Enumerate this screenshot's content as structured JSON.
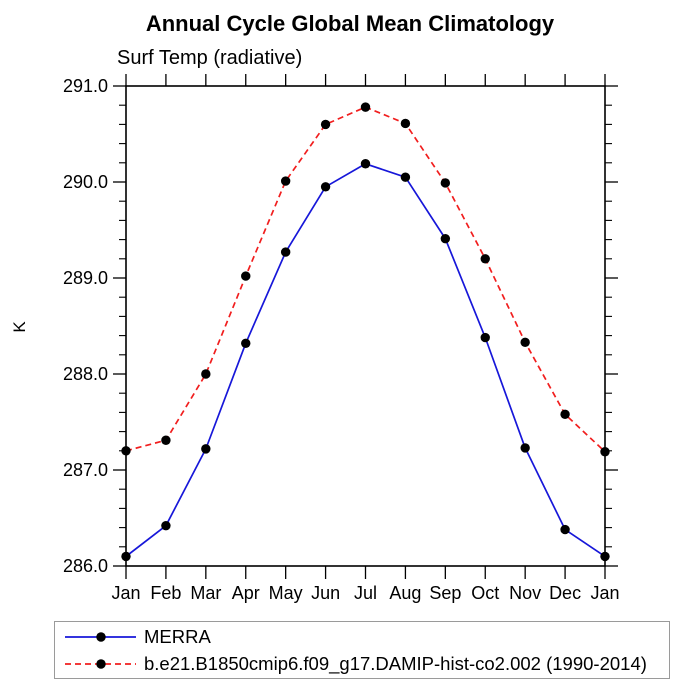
{
  "page": {
    "title": "Annual Cycle Global Mean Climatology"
  },
  "chart_data": {
    "type": "line",
    "title": "Annual Cycle Global Mean Climatology",
    "subtitle": "Surf Temp (radiative)",
    "ylabel": "K",
    "xlabel": "",
    "categories": [
      "Jan",
      "Feb",
      "Mar",
      "Apr",
      "May",
      "Jun",
      "Jul",
      "Aug",
      "Sep",
      "Oct",
      "Nov",
      "Dec",
      "Jan"
    ],
    "ylim": [
      286.0,
      291.0
    ],
    "ytick_major_interval": 1.0,
    "ytick_minor_interval": 0.2,
    "ytick_labels": [
      "286.0",
      "287.0",
      "288.0",
      "289.0",
      "290.0",
      "291.0"
    ],
    "grid": false,
    "legend_position": "bottom-left-boxed",
    "marker": {
      "shape": "filled-circle",
      "color": "#000000"
    },
    "series": [
      {
        "name": "MERRA",
        "color": "#1717d9",
        "line_style": "solid",
        "values": [
          286.1,
          286.42,
          287.22,
          288.32,
          289.27,
          289.95,
          290.19,
          290.05,
          289.41,
          288.38,
          287.23,
          286.38,
          286.1
        ]
      },
      {
        "name": "b.e21.B1850cmip6.f09_g17.DAMIP-hist-co2.002 (1990-2014)",
        "color": "#f11e1e",
        "line_style": "dashed",
        "values": [
          287.2,
          287.31,
          288.0,
          289.02,
          290.01,
          290.6,
          290.78,
          290.61,
          289.99,
          289.2,
          288.33,
          287.58,
          287.19
        ]
      }
    ]
  }
}
